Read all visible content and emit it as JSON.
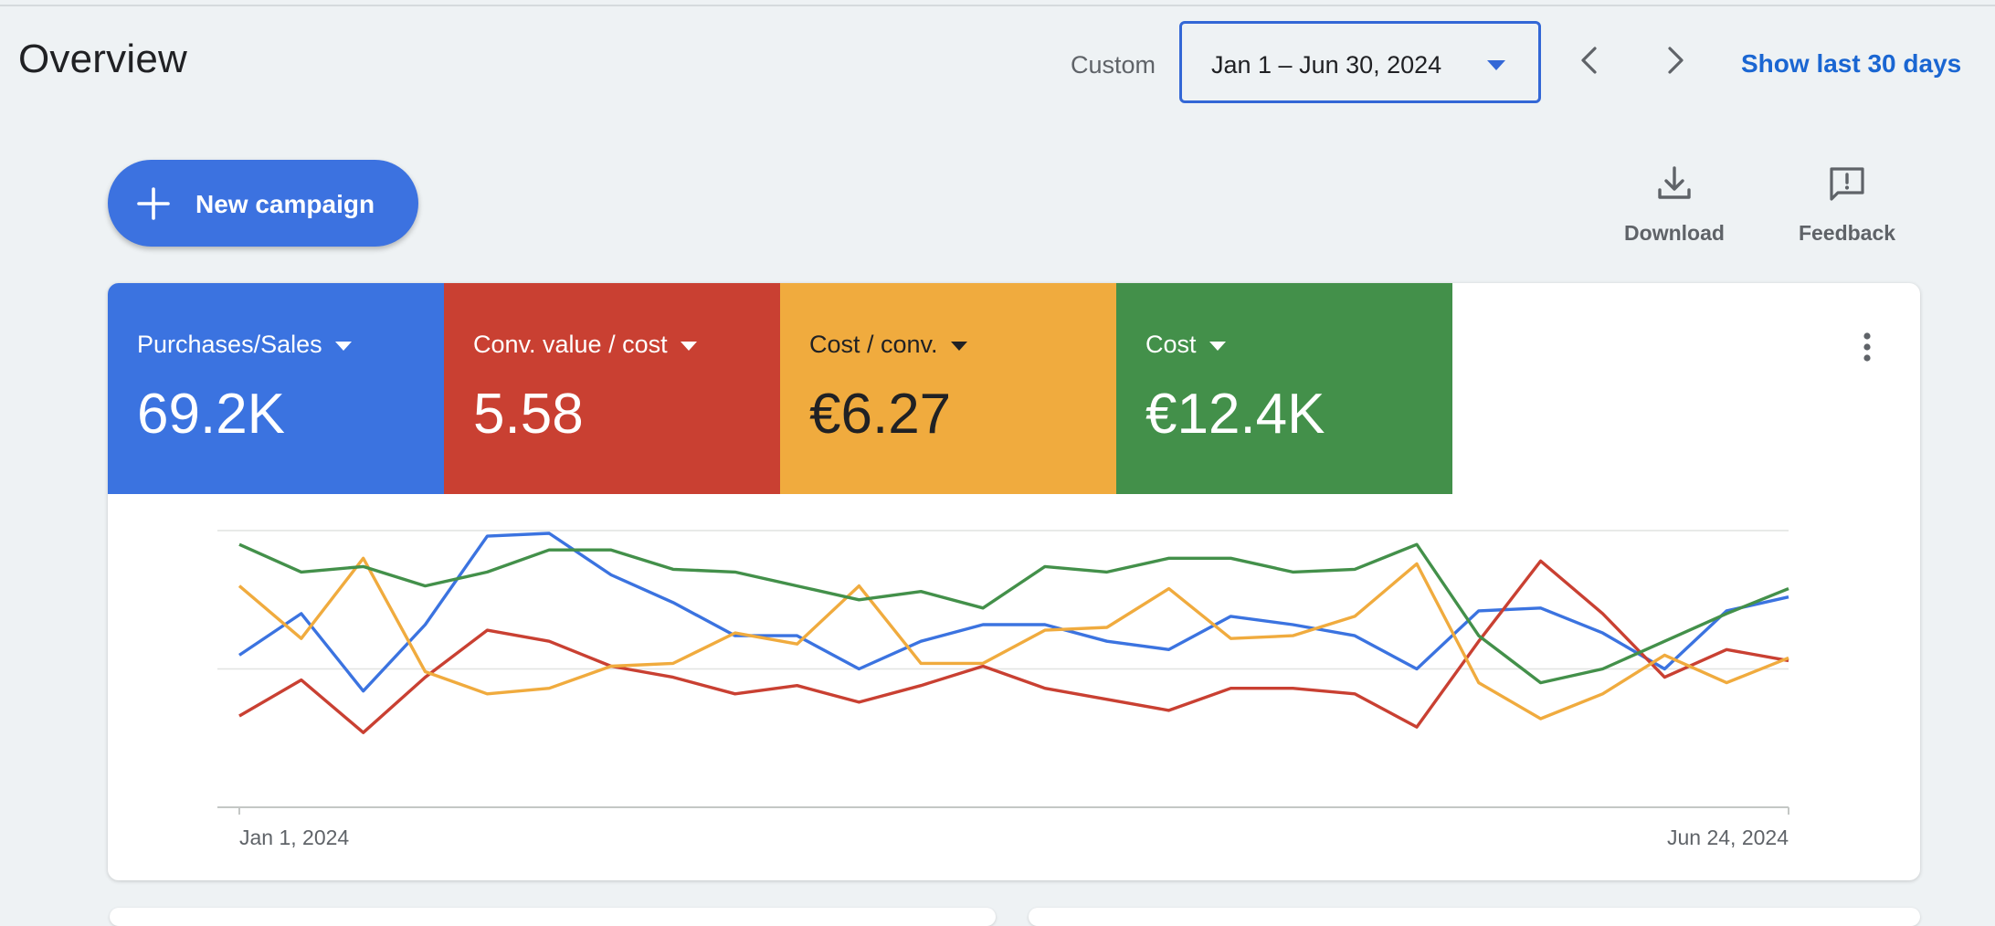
{
  "header": {
    "title": "Overview",
    "range_label": "Custom",
    "date_range": "Jan 1 – Jun 30, 2024",
    "show_last_30": "Show last 30 days"
  },
  "toolbar": {
    "new_campaign": "New campaign",
    "download": "Download",
    "feedback": "Feedback"
  },
  "metrics": [
    {
      "name": "Purchases/Sales",
      "value": "69.2K",
      "color": "#3b73e0",
      "text_color": "#ffffff"
    },
    {
      "name": "Conv. value / cost",
      "value": "5.58",
      "color": "#c94032",
      "text_color": "#ffffff"
    },
    {
      "name": "Cost / conv.",
      "value": "€6.27",
      "color": "#f0ab3e",
      "text_color": "#202124"
    },
    {
      "name": "Cost",
      "value": "€12.4K",
      "color": "#43904a",
      "text_color": "#ffffff"
    }
  ],
  "chart_data": {
    "type": "line",
    "x_start_label": "Jan 1, 2024",
    "x_end_label": "Jun 24, 2024",
    "x_tick_labels": [
      "Jan 1, 2024",
      "Jun 24, 2024"
    ],
    "y_axis_labels": "none",
    "y_range": [
      0,
      100
    ],
    "grid": true,
    "gridlines": [
      0,
      50,
      100
    ],
    "note": "normalized scale, no y tick labels shown",
    "series": [
      {
        "metric": "Purchases/Sales",
        "color": "#3b73e0",
        "values": [
          55,
          70,
          42,
          66,
          98,
          99,
          84,
          74,
          62,
          62,
          50,
          60,
          66,
          66,
          60,
          57,
          69,
          66,
          62,
          50,
          71,
          72,
          63,
          50,
          71,
          76
        ]
      },
      {
        "metric": "Conv. value / cost",
        "color": "#c94032",
        "values": [
          33,
          46,
          27,
          47,
          64,
          60,
          51,
          47,
          41,
          44,
          38,
          44,
          51,
          43,
          39,
          35,
          43,
          43,
          41,
          29,
          60,
          89,
          70,
          47,
          57,
          53
        ]
      },
      {
        "metric": "Cost / conv.",
        "color": "#f0ab3e",
        "values": [
          80,
          61,
          90,
          49,
          41,
          43,
          51,
          52,
          63,
          59,
          80,
          52,
          52,
          64,
          65,
          79,
          61,
          62,
          69,
          88,
          45,
          32,
          41,
          55,
          45,
          54
        ]
      },
      {
        "metric": "Cost",
        "color": "#43904a",
        "values": [
          95,
          85,
          87,
          80,
          85,
          93,
          93,
          86,
          85,
          80,
          75,
          78,
          72,
          87,
          85,
          90,
          90,
          85,
          86,
          95,
          62,
          45,
          50,
          60,
          70,
          79
        ]
      }
    ]
  }
}
